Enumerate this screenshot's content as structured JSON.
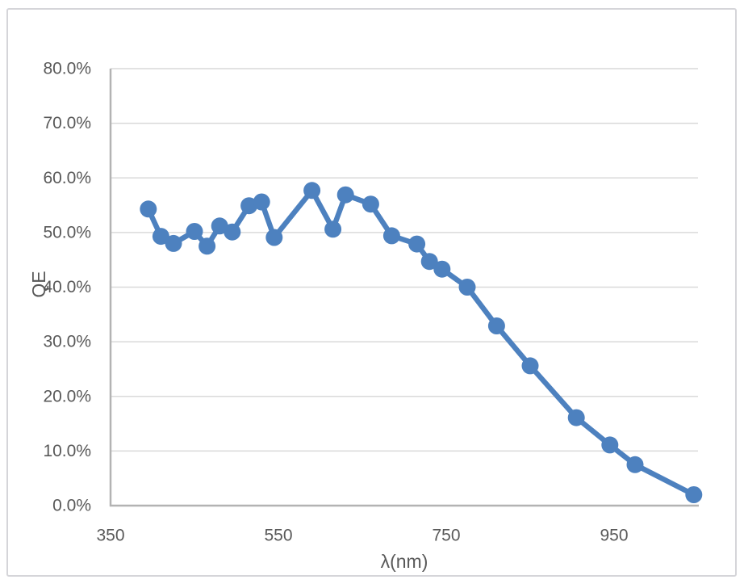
{
  "chart_data": {
    "type": "line",
    "title": "",
    "xlabel": "λ(nm)",
    "ylabel": "QE",
    "x": [
      395,
      410,
      425,
      450,
      465,
      480,
      495,
      515,
      530,
      545,
      590,
      615,
      630,
      660,
      685,
      715,
      730,
      745,
      775,
      810,
      850,
      905,
      945,
      975,
      1045
    ],
    "series": [
      {
        "name": "QE",
        "values_percent": [
          54.3,
          49.3,
          48.0,
          50.2,
          47.5,
          51.2,
          50.1,
          54.9,
          55.6,
          49.1,
          57.7,
          50.6,
          56.9,
          55.2,
          49.4,
          47.9,
          44.7,
          43.3,
          40.0,
          32.9,
          25.6,
          16.1,
          11.1,
          7.5,
          2.0
        ]
      }
    ],
    "xlim": [
      350,
      1050
    ],
    "ylim_percent": [
      0,
      80
    ],
    "x_tick_values": [
      350,
      550,
      750,
      950
    ],
    "x_tick_labels": [
      "350",
      "550",
      "750",
      "950"
    ],
    "y_tick_values": [
      0,
      10,
      20,
      30,
      40,
      50,
      60,
      70,
      80
    ],
    "y_tick_labels": [
      "0.0%",
      "10.0%",
      "20.0%",
      "30.0%",
      "40.0%",
      "50.0%",
      "60.0%",
      "70.0%",
      "80.0%"
    ],
    "grid": true,
    "legend": false,
    "marker": "circle",
    "colors": {
      "series": "#4d81bf",
      "gridline": "#d9d9d9",
      "axis_line": "#b3b3b3",
      "tick_text": "#595959"
    }
  }
}
